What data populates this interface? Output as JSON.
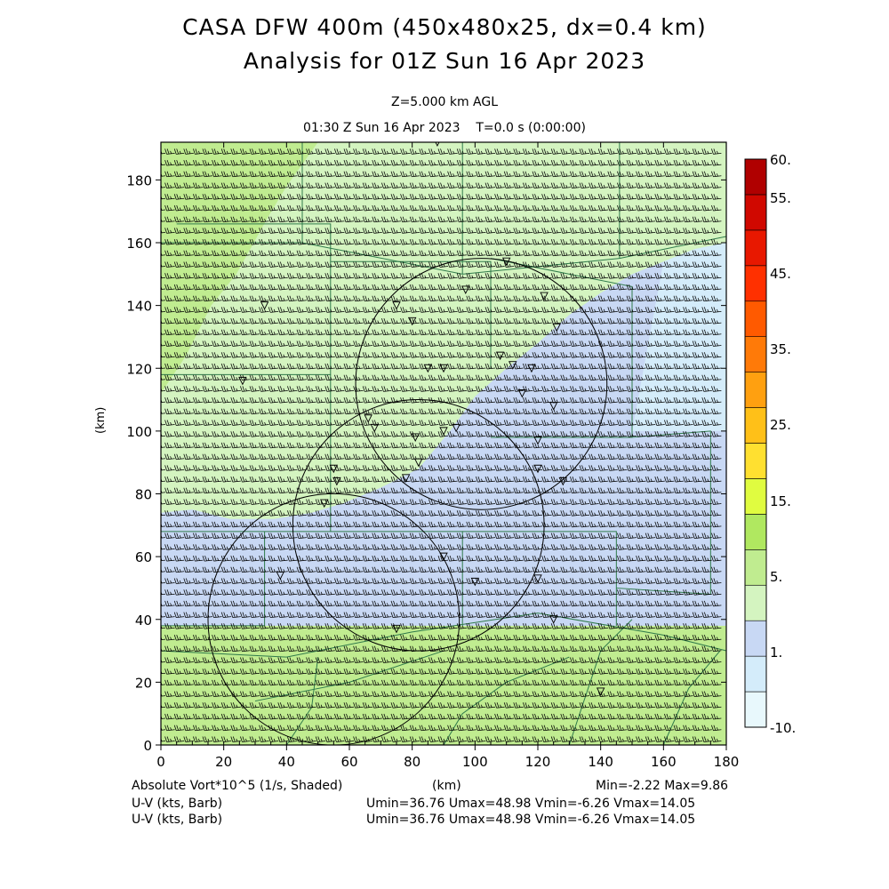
{
  "header": {
    "title_line1": "CASA DFW 400m (450x480x25, dx=0.4 km)",
    "title_line2": "Analysis for 01Z Sun 16 Apr 2023",
    "level": "Z=5.000 km AGL",
    "valid_time": "01:30 Z Sun 16 Apr 2023    T=0.0 s (0:00:00)"
  },
  "axes": {
    "x_ticks": [
      "0",
      "20",
      "40",
      "60",
      "80",
      "100",
      "120",
      "140",
      "160",
      "180"
    ],
    "y_ticks": [
      "0",
      "20",
      "40",
      "60",
      "80",
      "100",
      "120",
      "140",
      "160",
      "180"
    ],
    "x_label": "(km)",
    "y_label": "(km)",
    "x_range": [
      0,
      180
    ],
    "y_range": [
      0,
      192
    ]
  },
  "colorbar": {
    "labels": [
      "60.",
      "55.",
      "45.",
      "35.",
      "25.",
      "15.",
      "5.",
      "1.",
      "-10."
    ],
    "colors": [
      "#e8f8fc",
      "#d4ecfa",
      "#c8d8f4",
      "#d4f4c0",
      "#c0ec90",
      "#b0e860",
      "#e0fc40",
      "#ffe030",
      "#ffc018",
      "#ffa010",
      "#ff7a08",
      "#ff5a00",
      "#ff3000",
      "#e81800",
      "#d00800",
      "#b00000"
    ]
  },
  "field": {
    "shading_colors": {
      "neutral": "#d4f4c0",
      "green": "#c0ec90",
      "blue": "#c8d8f4",
      "lightblue": "#d4ecfa"
    }
  },
  "footer": {
    "field_label": "Absolute Vort*10^5 (1/s, Shaded)",
    "axis_unit": "(km)",
    "minmax": "Min=-2.22 Max=9.86",
    "wind1_label": "U-V (kts, Barb)",
    "wind1_stats": "Umin=36.76 Umax=48.98 Vmin=-6.26 Vmax=14.05",
    "wind2_label": "U-V (kts, Barb)",
    "wind2_stats": "Umin=36.76 Umax=48.98 Vmin=-6.26 Vmax=14.05"
  }
}
